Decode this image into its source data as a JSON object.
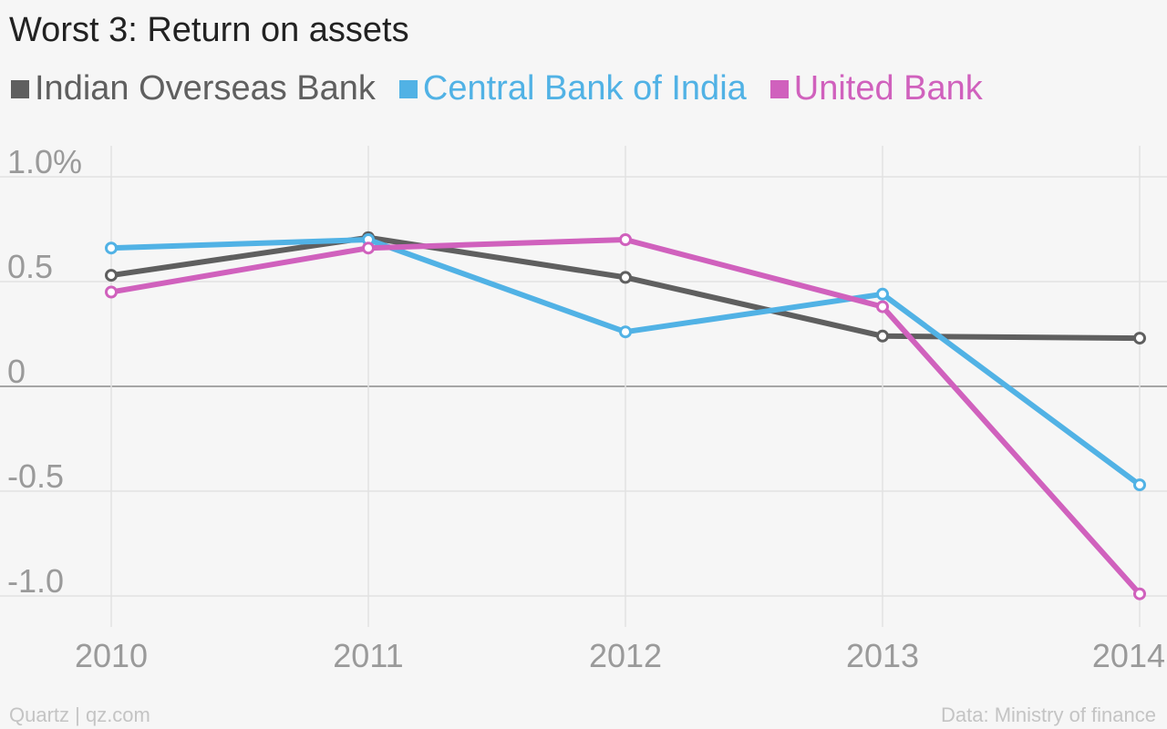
{
  "chart_data": {
    "type": "line",
    "title": "Worst 3: Return on assets",
    "x": [
      "2010",
      "2011",
      "2012",
      "2013",
      "2014"
    ],
    "y_ticks": [
      1.0,
      0.5,
      0,
      -0.5,
      -1.0
    ],
    "y_tick_labels": [
      "1.0%",
      "0.5",
      "0",
      "-0.5",
      "-1.0"
    ],
    "ylim": [
      -1.2,
      1.1
    ],
    "grid": true,
    "legend_position": "top-left",
    "series": [
      {
        "name": "Indian Overseas Bank",
        "color": "#5f5f5f",
        "values": [
          0.53,
          0.71,
          0.52,
          0.24,
          0.23
        ]
      },
      {
        "name": "Central Bank of India",
        "color": "#51b2e5",
        "values": [
          0.66,
          0.7,
          0.26,
          0.44,
          -0.47
        ]
      },
      {
        "name": "United Bank",
        "color": "#d061bd",
        "values": [
          0.45,
          0.66,
          0.7,
          0.38,
          -0.99
        ]
      }
    ]
  },
  "footer": {
    "source_left": "Quartz | qz.com",
    "source_right": "Data: Ministry of finance"
  }
}
